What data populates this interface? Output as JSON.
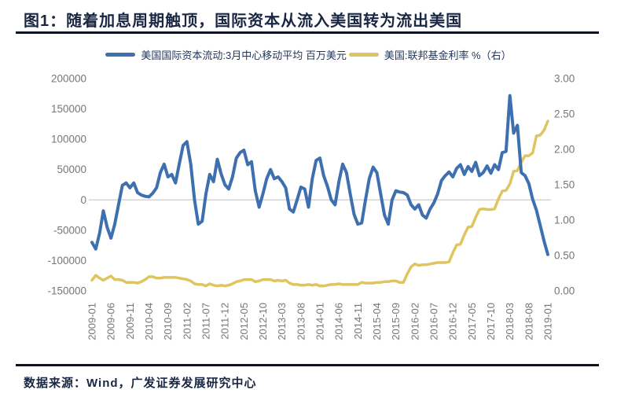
{
  "page": {
    "title": "图1：随着加息周期触顶，国际资本从流入美国转为流出美国"
  },
  "legend": {
    "series1": "美国国际资本流动:3月中心移动平均 百万美元",
    "series2": "美国:联邦基金利率 %（右）"
  },
  "footer": {
    "source": "数据来源：Wind，广发证券发展研究中心"
  },
  "colors": {
    "blue": "#3E70B0",
    "yellow": "#DFC45F",
    "grid": "#D6D6D6",
    "axis_text": "#767676",
    "heading_text": "#1A2742",
    "rule": "#0B1220"
  },
  "chart_data": {
    "type": "line",
    "title": "随着加息周期触顶，国际资本从流入美国转为流出美国",
    "grid": "single horizontal gridline at left-axis 0",
    "legend_position": "top-center",
    "left_axis": {
      "label": "百万美元",
      "ticks": [
        200000,
        150000,
        100000,
        50000,
        0,
        -50000,
        -100000,
        -150000
      ],
      "range": [
        -150000,
        200000
      ]
    },
    "right_axis": {
      "label": "%",
      "ticks": [
        "3.00",
        "2.50",
        "2.00",
        "1.50",
        "1.00",
        "0.50",
        "0.00"
      ],
      "range": [
        0,
        3
      ]
    },
    "x_tick_labels": [
      "2009-01",
      "2009-06",
      "2009-11",
      "2010-04",
      "2010-09",
      "2011-02",
      "2011-07",
      "2011-12",
      "2012-05",
      "2012-10",
      "2013-03",
      "2013-08",
      "2014-01",
      "2014-06",
      "2014-11",
      "2015-04",
      "2015-09",
      "2016-02",
      "2016-07",
      "2016-12",
      "2017-05",
      "2017-10",
      "2018-03",
      "2018-08",
      "2019-01"
    ],
    "x_months": [
      "2009-01",
      "2009-02",
      "2009-03",
      "2009-04",
      "2009-05",
      "2009-06",
      "2009-07",
      "2009-08",
      "2009-09",
      "2009-10",
      "2009-11",
      "2009-12",
      "2010-01",
      "2010-02",
      "2010-03",
      "2010-04",
      "2010-05",
      "2010-06",
      "2010-07",
      "2010-08",
      "2010-09",
      "2010-10",
      "2010-11",
      "2010-12",
      "2011-01",
      "2011-02",
      "2011-03",
      "2011-04",
      "2011-05",
      "2011-06",
      "2011-07",
      "2011-08",
      "2011-09",
      "2011-10",
      "2011-11",
      "2011-12",
      "2012-01",
      "2012-02",
      "2012-03",
      "2012-04",
      "2012-05",
      "2012-06",
      "2012-07",
      "2012-08",
      "2012-09",
      "2012-10",
      "2012-11",
      "2012-12",
      "2013-01",
      "2013-02",
      "2013-03",
      "2013-04",
      "2013-05",
      "2013-06",
      "2013-07",
      "2013-08",
      "2013-09",
      "2013-10",
      "2013-11",
      "2013-12",
      "2014-01",
      "2014-02",
      "2014-03",
      "2014-04",
      "2014-05",
      "2014-06",
      "2014-07",
      "2014-08",
      "2014-09",
      "2014-10",
      "2014-11",
      "2014-12",
      "2015-01",
      "2015-02",
      "2015-03",
      "2015-04",
      "2015-05",
      "2015-06",
      "2015-07",
      "2015-08",
      "2015-09",
      "2015-10",
      "2015-11",
      "2015-12",
      "2016-01",
      "2016-02",
      "2016-03",
      "2016-04",
      "2016-05",
      "2016-06",
      "2016-07",
      "2016-08",
      "2016-09",
      "2016-10",
      "2016-11",
      "2016-12",
      "2017-01",
      "2017-02",
      "2017-03",
      "2017-04",
      "2017-05",
      "2017-06",
      "2017-07",
      "2017-08",
      "2017-09",
      "2017-10",
      "2017-11",
      "2017-12",
      "2018-01",
      "2018-02",
      "2018-03",
      "2018-04",
      "2018-05",
      "2018-06",
      "2018-07",
      "2018-08",
      "2018-09",
      "2018-10",
      "2018-11",
      "2018-12",
      "2019-01"
    ],
    "series": [
      {
        "name": "美国国际资本流动:3月中心移动平均 百万美元",
        "axis": "left",
        "color": "#3E70B0",
        "values": [
          -70000,
          -81000,
          -55000,
          -18000,
          -45000,
          -63000,
          -40000,
          -8000,
          24000,
          28000,
          20000,
          28000,
          12000,
          8000,
          6000,
          5000,
          11000,
          20000,
          45000,
          59000,
          38000,
          42000,
          28000,
          60000,
          90000,
          96000,
          59000,
          0,
          -40000,
          -35000,
          10000,
          42000,
          30000,
          67000,
          43000,
          25000,
          18000,
          38000,
          69000,
          78000,
          82000,
          58000,
          63000,
          15000,
          -12000,
          10000,
          35000,
          50000,
          35000,
          38000,
          30000,
          20000,
          -15000,
          -20000,
          0,
          21000,
          18000,
          -12000,
          35000,
          65000,
          69000,
          40000,
          22000,
          0,
          -8000,
          30000,
          59000,
          45000,
          9000,
          -24000,
          -40000,
          -38000,
          0,
          35000,
          54000,
          45000,
          10000,
          -25000,
          -40000,
          0,
          15000,
          13000,
          12000,
          8000,
          -8000,
          -15000,
          -8000,
          -25000,
          -30000,
          -15000,
          -5000,
          10000,
          32000,
          40000,
          46000,
          38000,
          52000,
          58000,
          42000,
          55000,
          47000,
          62000,
          40000,
          45000,
          56000,
          44000,
          58000,
          50000,
          78000,
          80000,
          172000,
          110000,
          123000,
          45000,
          40000,
          27000,
          1000,
          -17000,
          -42000,
          -68000,
          -90000
        ]
      },
      {
        "name": "美国:联邦基金利率 %（右）",
        "axis": "right",
        "color": "#DFC45F",
        "values": [
          0.15,
          0.22,
          0.18,
          0.15,
          0.18,
          0.21,
          0.16,
          0.16,
          0.15,
          0.12,
          0.12,
          0.12,
          0.11,
          0.13,
          0.16,
          0.2,
          0.2,
          0.18,
          0.18,
          0.19,
          0.19,
          0.19,
          0.19,
          0.18,
          0.17,
          0.16,
          0.14,
          0.1,
          0.09,
          0.09,
          0.07,
          0.1,
          0.08,
          0.07,
          0.08,
          0.07,
          0.08,
          0.1,
          0.13,
          0.14,
          0.16,
          0.16,
          0.16,
          0.13,
          0.14,
          0.16,
          0.16,
          0.16,
          0.14,
          0.15,
          0.14,
          0.15,
          0.11,
          0.09,
          0.09,
          0.08,
          0.08,
          0.09,
          0.08,
          0.09,
          0.07,
          0.07,
          0.08,
          0.09,
          0.09,
          0.1,
          0.09,
          0.09,
          0.09,
          0.09,
          0.09,
          0.12,
          0.11,
          0.11,
          0.11,
          0.12,
          0.12,
          0.13,
          0.13,
          0.14,
          0.14,
          0.12,
          0.12,
          0.24,
          0.34,
          0.38,
          0.36,
          0.37,
          0.37,
          0.38,
          0.39,
          0.4,
          0.4,
          0.4,
          0.41,
          0.54,
          0.65,
          0.66,
          0.79,
          0.9,
          0.91,
          1.04,
          1.15,
          1.16,
          1.15,
          1.15,
          1.16,
          1.3,
          1.41,
          1.42,
          1.51,
          1.69,
          1.7,
          1.82,
          1.91,
          1.91,
          1.95,
          2.19,
          2.2,
          2.27,
          2.4
        ]
      }
    ]
  }
}
